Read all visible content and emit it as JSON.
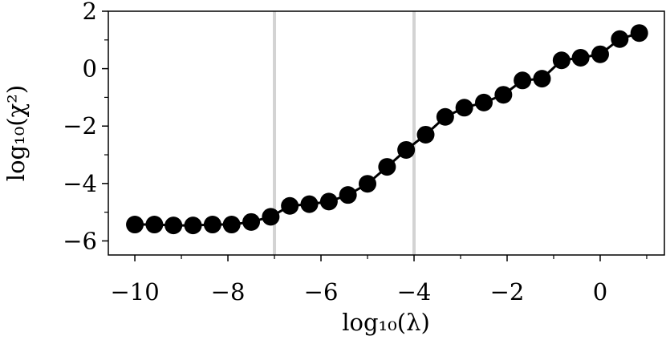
{
  "chart_data": {
    "type": "line",
    "xlabel": "log₁₀(λ)",
    "ylabel": "log₁₀(χ²)",
    "x": [
      -10,
      -9.58,
      -9.17,
      -8.75,
      -8.33,
      -7.92,
      -7.5,
      -7.08,
      -6.67,
      -6.25,
      -5.83,
      -5.42,
      -5,
      -4.58,
      -4.17,
      -3.75,
      -3.33,
      -2.92,
      -2.5,
      -2.08,
      -1.67,
      -1.25,
      -0.83,
      -0.42,
      0,
      0.42,
      0.84
    ],
    "series": [
      {
        "name": "chi2",
        "color": "#000000",
        "values": [
          -5.43,
          -5.43,
          -5.46,
          -5.46,
          -5.43,
          -5.43,
          -5.34,
          -5.16,
          -4.78,
          -4.72,
          -4.63,
          -4.4,
          -4.01,
          -3.42,
          -2.83,
          -2.3,
          -1.68,
          -1.36,
          -1.18,
          -0.91,
          -0.41,
          -0.35,
          0.29,
          0.38,
          0.5,
          1.03,
          1.24
        ]
      }
    ],
    "vlines": [
      {
        "x": -7,
        "color": "#d3d3d3"
      },
      {
        "x": -4,
        "color": "#d3d3d3"
      }
    ],
    "xlim": [
      -10.57,
      1.38
    ],
    "ylim": [
      -6.49,
      2
    ],
    "xticks": [
      {
        "value": -10,
        "label": "−10"
      },
      {
        "value": -8,
        "label": "−8"
      },
      {
        "value": -6,
        "label": "−6"
      },
      {
        "value": -4,
        "label": "−4"
      },
      {
        "value": -2,
        "label": "−2"
      },
      0
    ],
    "xminorticks": [
      -9,
      -7,
      -5,
      -3,
      -1,
      1
    ],
    "yticks": [
      {
        "value": -6,
        "label": "−6"
      },
      {
        "value": -4,
        "label": "−4"
      },
      {
        "value": -2,
        "label": "−2"
      },
      0,
      2
    ],
    "yminorticks": [
      -5,
      -3,
      -1,
      1
    ]
  }
}
